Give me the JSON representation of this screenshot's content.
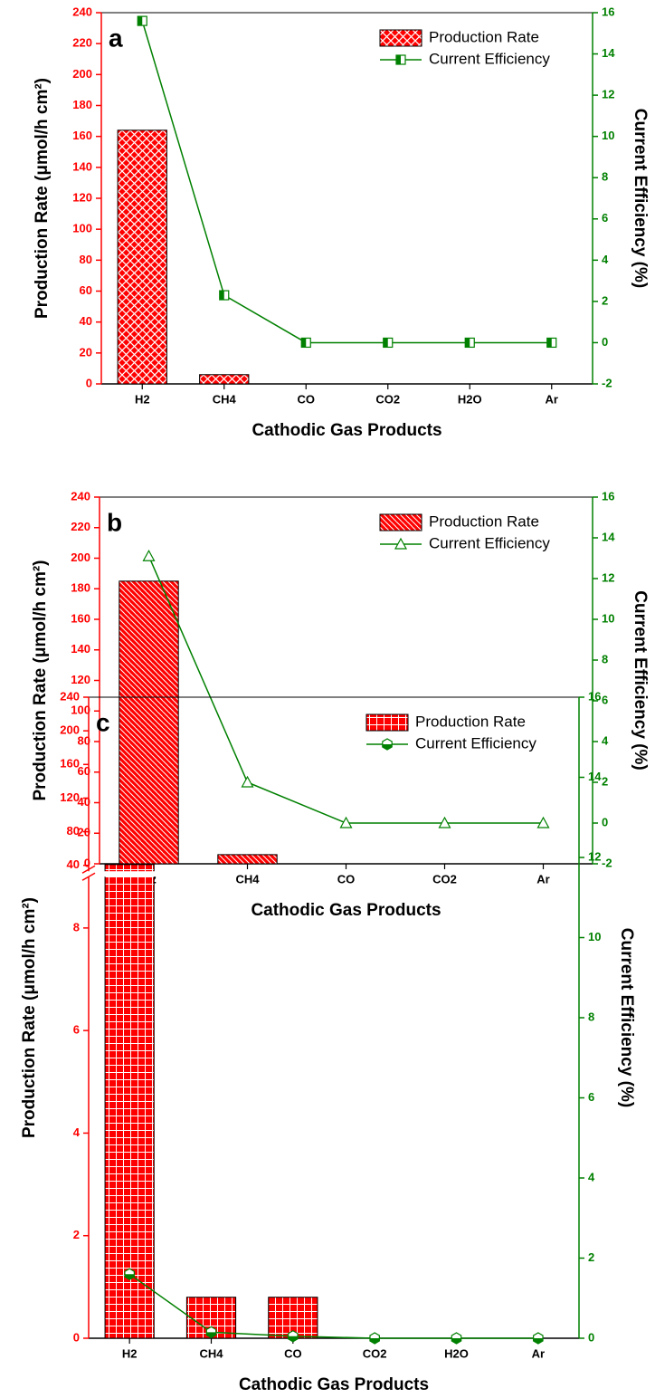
{
  "chart_data": [
    {
      "type": "combo",
      "panel_label": "a",
      "xlabel": "Cathodic Gas Products",
      "ylabel": "Production Rate (μmol/h cm²)",
      "y2label": "Current Efficiency (%)",
      "categories": [
        "H2",
        "CH4",
        "CO",
        "CO2",
        "H2O",
        "Ar"
      ],
      "series": [
        {
          "name": "Production Rate",
          "type": "bar",
          "color": "#ff0000",
          "hatch": "crosshatch",
          "values": [
            164,
            6,
            0,
            0,
            0,
            0
          ]
        },
        {
          "name": "Current Efficiency",
          "type": "line",
          "axis": "y2",
          "color": "#008000",
          "marker": "square",
          "values": [
            15.6,
            2.3,
            0,
            0,
            0,
            0
          ]
        }
      ],
      "ylim": [
        0,
        240
      ],
      "yticks": [
        0,
        20,
        40,
        60,
        80,
        100,
        120,
        140,
        160,
        180,
        200,
        220,
        240
      ],
      "y2lim": [
        -2,
        16
      ],
      "y2ticks": [
        -2,
        0,
        2,
        4,
        6,
        8,
        10,
        12,
        14,
        16
      ],
      "legend": "upper right"
    },
    {
      "type": "combo",
      "panel_label": "b",
      "xlabel": "Cathodic Gas Products",
      "ylabel": "Production Rate (μmol/h cm²)",
      "y2label": "Current Efficiency (%)",
      "categories": [
        "H2",
        "CH4",
        "CO",
        "CO2",
        "Ar"
      ],
      "series": [
        {
          "name": "Production Rate",
          "type": "bar",
          "color": "#ff0000",
          "hatch": "diagonal",
          "values": [
            185,
            6,
            0,
            0,
            0
          ]
        },
        {
          "name": "Current Efficiency",
          "type": "line",
          "axis": "y2",
          "color": "#008000",
          "marker": "triangle",
          "values": [
            13.1,
            2.0,
            0,
            0,
            0
          ]
        }
      ],
      "ylim": [
        0,
        240
      ],
      "yticks": [
        0,
        20,
        40,
        60,
        80,
        100,
        120,
        140,
        160,
        180,
        200,
        220,
        240
      ],
      "y2lim": [
        -2,
        16
      ],
      "y2ticks": [
        -2,
        0,
        2,
        4,
        6,
        8,
        10,
        12,
        14,
        16
      ],
      "legend": "upper right"
    },
    {
      "type": "combo",
      "panel_label": "c",
      "xlabel": "Cathodic Gas Products",
      "ylabel": "Production Rate (μmol/h cm²)",
      "y2label": "Current Efficiency (%)",
      "categories": [
        "H2",
        "CH4",
        "CO",
        "CO2",
        "H2O",
        "Ar"
      ],
      "series": [
        {
          "name": "Production Rate",
          "type": "bar",
          "color": "#ff0000",
          "hatch": "grid",
          "values": [
            41,
            0.8,
            0.8,
            0,
            0,
            0
          ]
        },
        {
          "name": "Current Efficiency",
          "type": "line",
          "axis": "y2",
          "color": "#008000",
          "marker": "hexagon",
          "values": [
            1.6,
            0.15,
            0.05,
            0,
            0,
            0
          ]
        }
      ],
      "ylim": [
        0,
        240
      ],
      "y_break": [
        9,
        33
      ],
      "yticks": [
        0,
        2,
        4,
        6,
        8,
        40,
        80,
        120,
        160,
        200,
        240
      ],
      "y2lim": [
        0,
        16
      ],
      "y2ticks": [
        0,
        2,
        4,
        6,
        8,
        10,
        12,
        14,
        16
      ],
      "legend": "upper right"
    }
  ]
}
